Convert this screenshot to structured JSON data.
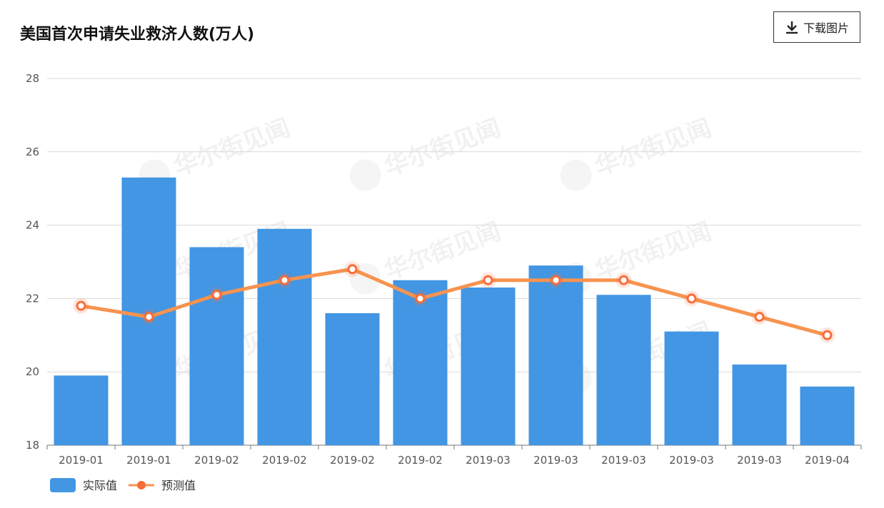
{
  "title": "美国首次申请失业救济人数(万人)",
  "download_label": "下载图片",
  "watermark": "华尔街见闻",
  "colors": {
    "bar": "#4296E3",
    "line": "#F7934F",
    "dot": "#F76D3A",
    "grid": "#D9D9D9",
    "axis": "#555555"
  },
  "chart_data": {
    "type": "bar",
    "categories": [
      "2019-01",
      "2019-01",
      "2019-02",
      "2019-02",
      "2019-02",
      "2019-02",
      "2019-03",
      "2019-03",
      "2019-03",
      "2019-03",
      "2019-03",
      "2019-04"
    ],
    "series": [
      {
        "name": "实际值",
        "type": "bar",
        "values": [
          19.9,
          25.3,
          23.4,
          23.9,
          21.6,
          22.5,
          22.3,
          22.9,
          22.1,
          21.1,
          20.2,
          19.6
        ]
      },
      {
        "name": "预测值",
        "type": "line",
        "values": [
          21.8,
          21.5,
          22.1,
          22.5,
          22.8,
          22.0,
          22.5,
          22.5,
          22.5,
          22.0,
          21.5,
          21.0
        ]
      }
    ],
    "y_ticks": [
      18,
      20,
      22,
      24,
      26,
      28
    ],
    "ylim": [
      18,
      28
    ],
    "grid": true,
    "legend_position": "bottom-left"
  }
}
